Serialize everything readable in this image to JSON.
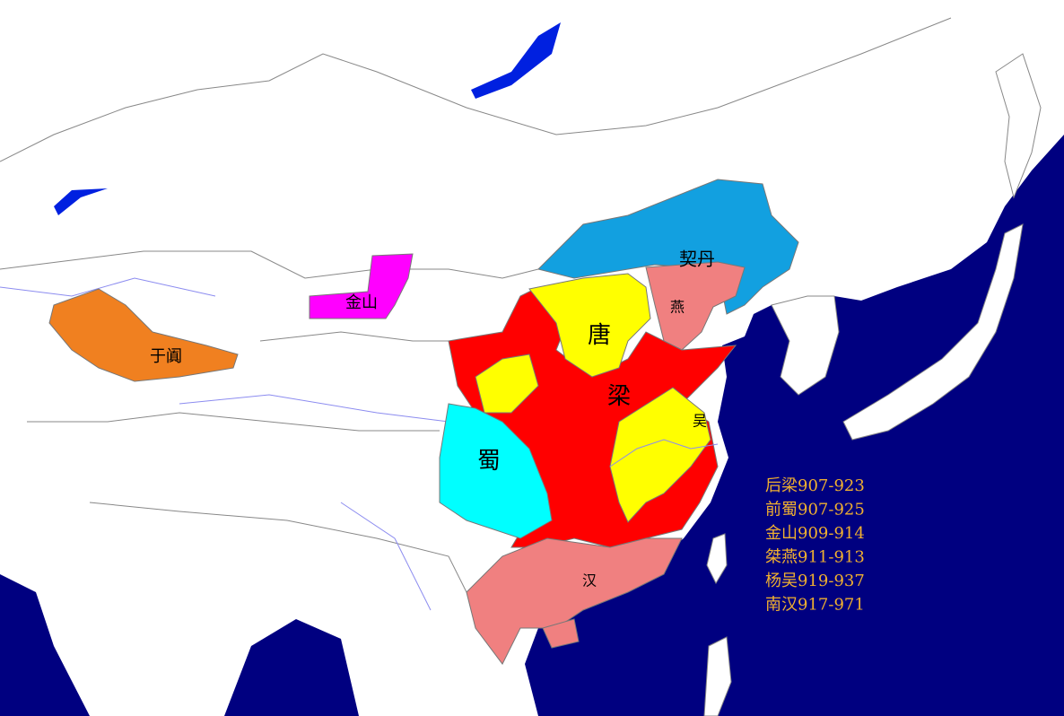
{
  "regions": [
    {
      "label": "契丹"
    },
    {
      "label": "燕"
    },
    {
      "label": "唐"
    },
    {
      "label": "梁"
    },
    {
      "label": "吴"
    },
    {
      "label": "蜀"
    },
    {
      "label": "金山"
    },
    {
      "label": "于阗"
    },
    {
      "label": "汉"
    }
  ],
  "legend": [
    "后梁907-923",
    "前蜀907-925",
    "金山909-914",
    "桀燕911-913",
    "杨吴919-937",
    "南汉917-971"
  ]
}
